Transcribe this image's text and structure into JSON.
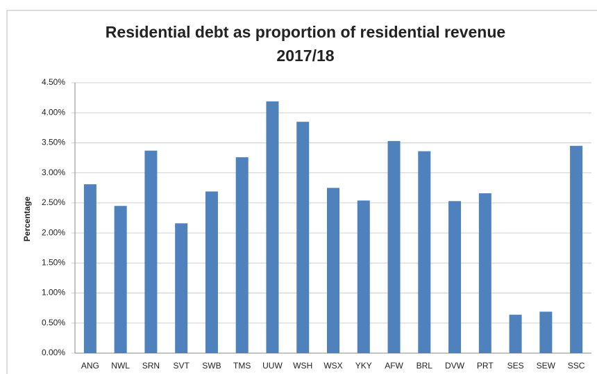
{
  "chart_data": {
    "type": "bar",
    "title": [
      "Residential debt as proportion of residential revenue",
      "2017/18"
    ],
    "y_label": "Percentage",
    "categories": [
      "ANG",
      "NWL",
      "SRN",
      "SVT",
      "SWB",
      "TMS",
      "UUW",
      "WSH",
      "WSX",
      "YKY",
      "AFW",
      "BRL",
      "DVW",
      "PRT",
      "SES",
      "SEW",
      "SSC"
    ],
    "values": [
      2.81,
      2.45,
      3.37,
      2.16,
      2.69,
      3.26,
      4.19,
      3.85,
      2.75,
      2.54,
      3.53,
      3.36,
      2.53,
      2.66,
      0.64,
      0.69,
      3.45
    ],
    "color": "#4f81bd",
    "ylim": [
      0,
      4.5
    ],
    "yticks": [
      {
        "value": 0,
        "label": "0.00%"
      },
      {
        "value": 0.5,
        "label": "0.50%"
      },
      {
        "value": 1,
        "label": "1.00%"
      },
      {
        "value": 1.5,
        "label": "1.50%"
      },
      {
        "value": 2,
        "label": "2.00%"
      },
      {
        "value": 2.5,
        "label": "2.50%"
      },
      {
        "value": 3,
        "label": "3.00%"
      },
      {
        "value": 3.5,
        "label": "3.50%"
      },
      {
        "value": 4,
        "label": "4.00%"
      },
      {
        "value": 4.5,
        "label": "4.50%"
      }
    ],
    "grid": true
  }
}
